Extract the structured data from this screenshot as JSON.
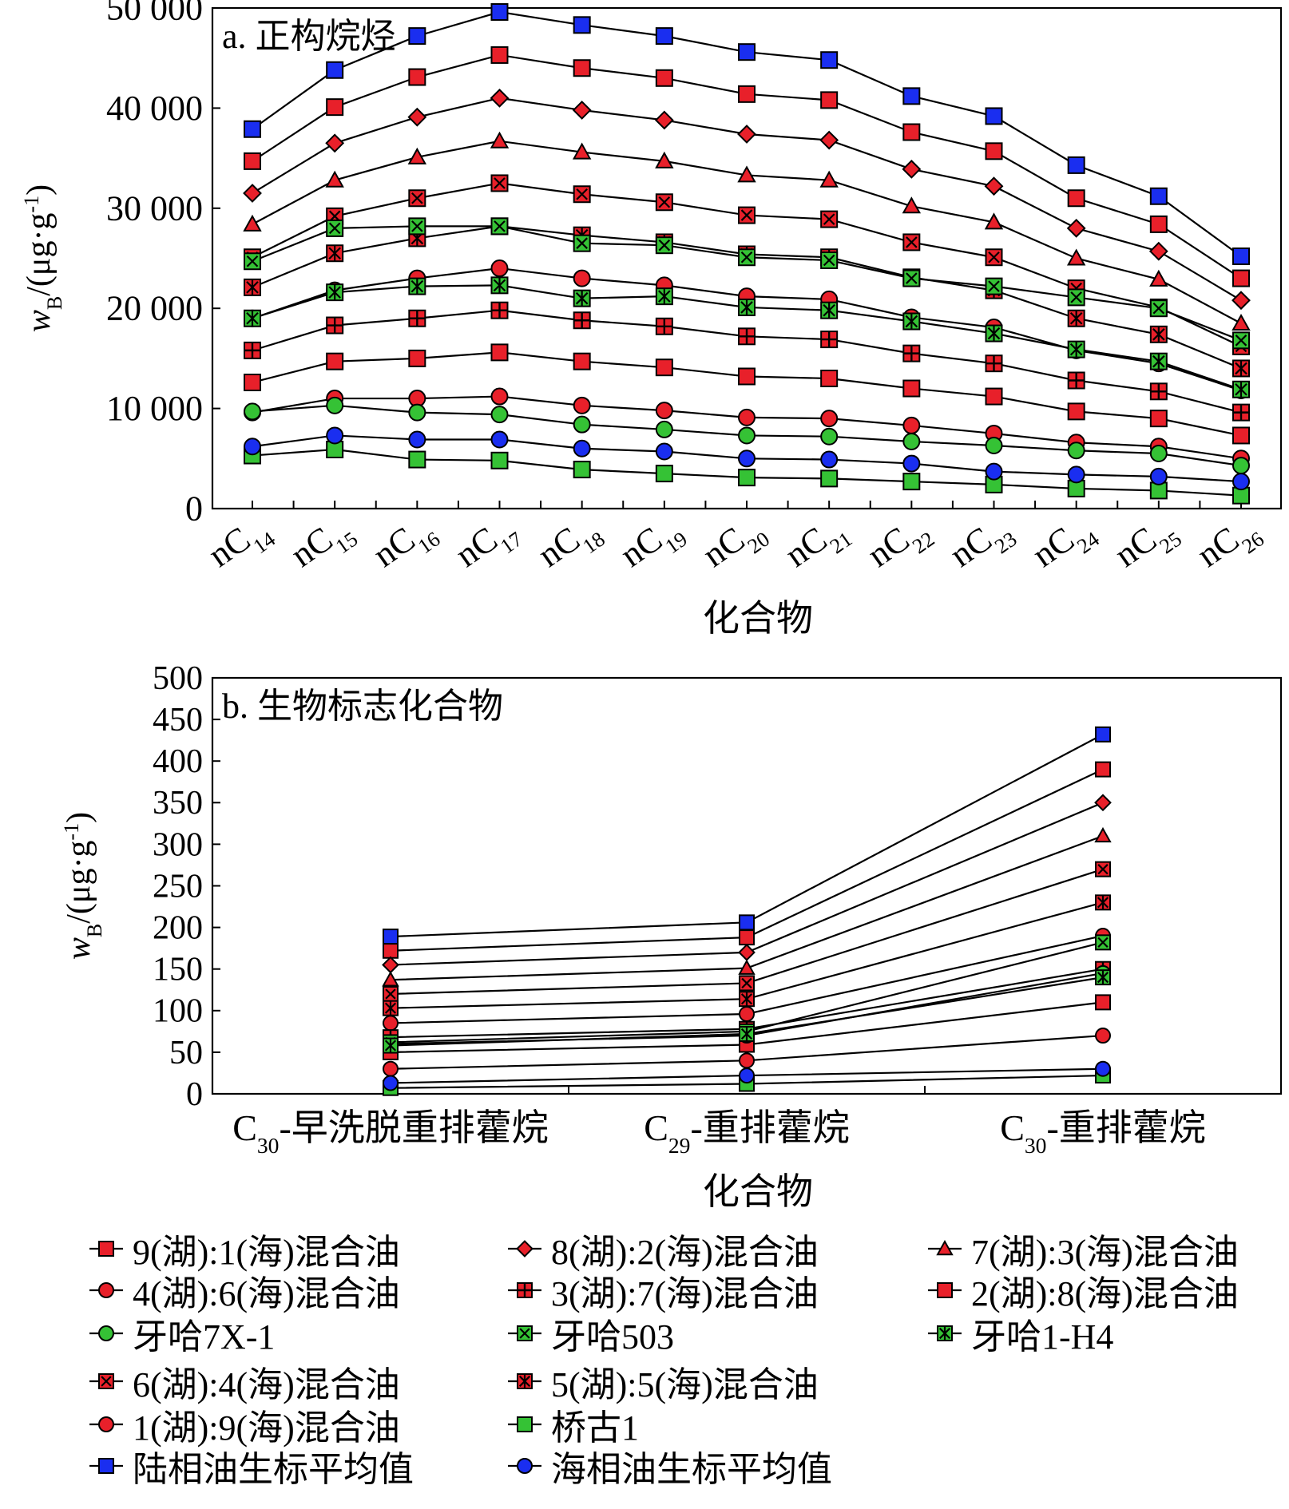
{
  "chart_data": [
    {
      "type": "line",
      "title": "a. 正构烷烃",
      "xlabel": "化合物",
      "ylabel": "wB/(μg·g-1)",
      "ylim": [
        0,
        50000
      ],
      "yticks": [
        0,
        10000,
        20000,
        30000,
        40000,
        50000
      ],
      "ytick_labels": [
        "0",
        "10 000",
        "20 000",
        "30 000",
        "40 000",
        "50 000"
      ],
      "categories": [
        "nC14",
        "nC15",
        "nC16",
        "nC17",
        "nC18",
        "nC19",
        "nC20",
        "nC21",
        "nC22",
        "nC23",
        "nC24",
        "nC25",
        "nC26"
      ],
      "category_labels": [
        {
          "base": "nC",
          "sub": "14"
        },
        {
          "base": "nC",
          "sub": "15"
        },
        {
          "base": "nC",
          "sub": "16"
        },
        {
          "base": "nC",
          "sub": "17"
        },
        {
          "base": "nC",
          "sub": "18"
        },
        {
          "base": "nC",
          "sub": "19"
        },
        {
          "base": "nC",
          "sub": "20"
        },
        {
          "base": "nC",
          "sub": "21"
        },
        {
          "base": "nC",
          "sub": "22"
        },
        {
          "base": "nC",
          "sub": "23"
        },
        {
          "base": "nC",
          "sub": "24"
        },
        {
          "base": "nC",
          "sub": "25"
        },
        {
          "base": "nC",
          "sub": "26"
        }
      ],
      "grid": false,
      "series": [
        {
          "key": "s9",
          "name": "9(湖):1(海)混合油",
          "values": [
            34700,
            40100,
            43100,
            45300,
            44000,
            43000,
            41400,
            40800,
            37600,
            35700,
            31000,
            28400,
            23000
          ]
        },
        {
          "key": "s8",
          "name": "8(湖):2(海)混合油",
          "values": [
            31500,
            36500,
            39100,
            41000,
            39800,
            38800,
            37400,
            36800,
            33900,
            32200,
            28000,
            25700,
            20800
          ]
        },
        {
          "key": "s7",
          "name": "7(湖):3(海)混合油",
          "values": [
            28400,
            32800,
            35100,
            36700,
            35600,
            34700,
            33300,
            32800,
            30200,
            28600,
            25000,
            22900,
            18500
          ]
        },
        {
          "key": "s6",
          "name": "6(湖):4(海)混合油",
          "values": [
            25100,
            29200,
            31000,
            32500,
            31400,
            30600,
            29300,
            28900,
            26600,
            25100,
            22000,
            20100,
            16200
          ]
        },
        {
          "key": "s5",
          "name": "5(湖):5(海)混合油",
          "values": [
            22100,
            25500,
            27000,
            28200,
            27300,
            26600,
            25400,
            25100,
            23100,
            21800,
            19000,
            17400,
            14000
          ]
        },
        {
          "key": "s4",
          "name": "4(湖):6(海)混合油",
          "values": [
            19000,
            21800,
            23000,
            24000,
            23000,
            22300,
            21200,
            20900,
            19100,
            18100,
            15800,
            14500,
            11800
          ]
        },
        {
          "key": "s3",
          "name": "3(湖):7(海)混合油",
          "values": [
            15800,
            18300,
            19000,
            19800,
            18800,
            18200,
            17200,
            16900,
            15500,
            14500,
            12800,
            11700,
            9600
          ]
        },
        {
          "key": "s2",
          "name": "2(湖):8(海)混合油",
          "values": [
            12600,
            14700,
            15000,
            15600,
            14700,
            14100,
            13200,
            13000,
            12000,
            11200,
            9700,
            9000,
            7300
          ]
        },
        {
          "key": "s1",
          "name": "1(湖):9(海)混合油",
          "values": [
            9600,
            11000,
            11000,
            11200,
            10300,
            9800,
            9100,
            9000,
            8300,
            7500,
            6600,
            6200,
            5000
          ]
        },
        {
          "key": "yh7x",
          "name": "牙哈7X-1",
          "values": [
            9700,
            10300,
            9600,
            9400,
            8400,
            7900,
            7300,
            7200,
            6700,
            6300,
            5800,
            5500,
            4300
          ]
        },
        {
          "key": "yh503",
          "name": "牙哈503",
          "values": [
            24700,
            28000,
            28200,
            28200,
            26500,
            26300,
            25100,
            24800,
            23000,
            22200,
            21100,
            20000,
            16800
          ]
        },
        {
          "key": "yh1h4",
          "name": "牙哈1-H4",
          "values": [
            19000,
            21600,
            22200,
            22300,
            21000,
            21200,
            20100,
            19800,
            18700,
            17500,
            15900,
            14700,
            11900
          ]
        },
        {
          "key": "qg1",
          "name": "桥古1",
          "values": [
            5300,
            5900,
            4900,
            4800,
            3900,
            3500,
            3100,
            3000,
            2700,
            2400,
            2000,
            1800,
            1300
          ]
        },
        {
          "key": "land",
          "name": "陆相油生标平均值",
          "values": [
            37900,
            43800,
            47200,
            49600,
            48300,
            47200,
            45600,
            44800,
            41200,
            39200,
            34300,
            31200,
            25200
          ]
        },
        {
          "key": "marine",
          "name": "海相油生标平均值",
          "values": [
            6200,
            7300,
            6900,
            6900,
            6000,
            5700,
            5000,
            4900,
            4500,
            3700,
            3400,
            3200,
            2700
          ]
        }
      ]
    },
    {
      "type": "line",
      "title": "b. 生物标志化合物",
      "xlabel": "化合物",
      "ylabel": "wB/(μg·g-1)",
      "ylim": [
        0,
        500
      ],
      "yticks": [
        0,
        50,
        100,
        150,
        200,
        250,
        300,
        350,
        400,
        450,
        500
      ],
      "ytick_labels": [
        "0",
        "50",
        "100",
        "150",
        "200",
        "250",
        "300",
        "350",
        "400",
        "450",
        "500"
      ],
      "categories": [
        "C30-早洗脱重排藿烷",
        "C29-重排藿烷",
        "C30-重排藿烷"
      ],
      "category_labels": [
        {
          "base": "C",
          "sub": "30",
          "rest": "-早洗脱重排藿烷"
        },
        {
          "base": "C",
          "sub": "29",
          "rest": "-重排藿烷"
        },
        {
          "base": "C",
          "sub": "30",
          "rest": "-重排藿烷"
        }
      ],
      "grid": false,
      "series": [
        {
          "key": "s9",
          "name": "9(湖):1(海)混合油",
          "values": [
            172,
            188,
            390
          ]
        },
        {
          "key": "s8",
          "name": "8(湖):2(海)混合油",
          "values": [
            155,
            170,
            350
          ]
        },
        {
          "key": "s7",
          "name": "7(湖):3(海)混合油",
          "values": [
            137,
            151,
            310
          ]
        },
        {
          "key": "s6",
          "name": "6(湖):4(海)混合油",
          "values": [
            120,
            133,
            270
          ]
        },
        {
          "key": "s5",
          "name": "5(湖):5(海)混合油",
          "values": [
            103,
            114,
            230
          ]
        },
        {
          "key": "s4",
          "name": "4(湖):6(海)混合油",
          "values": [
            85,
            96,
            190
          ]
        },
        {
          "key": "s3",
          "name": "3(湖):7(海)混合油",
          "values": [
            68,
            78,
            150
          ]
        },
        {
          "key": "s2",
          "name": "2(湖):8(海)混合油",
          "values": [
            50,
            59,
            110
          ]
        },
        {
          "key": "s1",
          "name": "1(湖):9(海)混合油",
          "values": [
            30,
            40,
            70
          ]
        },
        {
          "key": "yh7x",
          "name": "牙哈7X-1",
          "values": [
            60,
            70,
            145
          ]
        },
        {
          "key": "yh503",
          "name": "牙哈503",
          "values": [
            62,
            75,
            182
          ]
        },
        {
          "key": "yh1h4",
          "name": "牙哈1-H4",
          "values": [
            58,
            72,
            140
          ]
        },
        {
          "key": "qg1",
          "name": "桥古1",
          "values": [
            7,
            12,
            22
          ]
        },
        {
          "key": "land",
          "name": "陆相油生标平均值",
          "values": [
            189,
            206,
            432
          ]
        },
        {
          "key": "marine",
          "name": "海相油生标平均值",
          "values": [
            13,
            22,
            30
          ]
        }
      ]
    }
  ],
  "series_style": {
    "s9": {
      "marker": "square",
      "color": "#e8202a"
    },
    "s8": {
      "marker": "diamond",
      "color": "#e8202a"
    },
    "s7": {
      "marker": "triangle",
      "color": "#e8202a"
    },
    "s6": {
      "marker": "xsquare",
      "color": "#e8202a"
    },
    "s5": {
      "marker": "star",
      "color": "#e8202a"
    },
    "s4": {
      "marker": "circle",
      "color": "#e8202a"
    },
    "s3": {
      "marker": "plus",
      "color": "#e8202a"
    },
    "s2": {
      "marker": "square",
      "color": "#e8202a"
    },
    "s1": {
      "marker": "circle",
      "color": "#e8202a"
    },
    "yh7x": {
      "marker": "circle",
      "color": "#35c235"
    },
    "yh503": {
      "marker": "xsquare",
      "color": "#35c235"
    },
    "yh1h4": {
      "marker": "star",
      "color": "#35c235"
    },
    "qg1": {
      "marker": "square",
      "color": "#35c235"
    },
    "land": {
      "marker": "square",
      "color": "#1a2ef0"
    },
    "marine": {
      "marker": "circle",
      "color": "#1a2ef0"
    }
  },
  "legend_order": [
    "s9",
    "s8",
    "s7",
    "s4",
    "s3",
    "s2",
    "yh7x",
    "yh503",
    "yh1h4",
    "s6",
    "s5",
    "s1",
    "qg1",
    "land",
    "marine"
  ]
}
